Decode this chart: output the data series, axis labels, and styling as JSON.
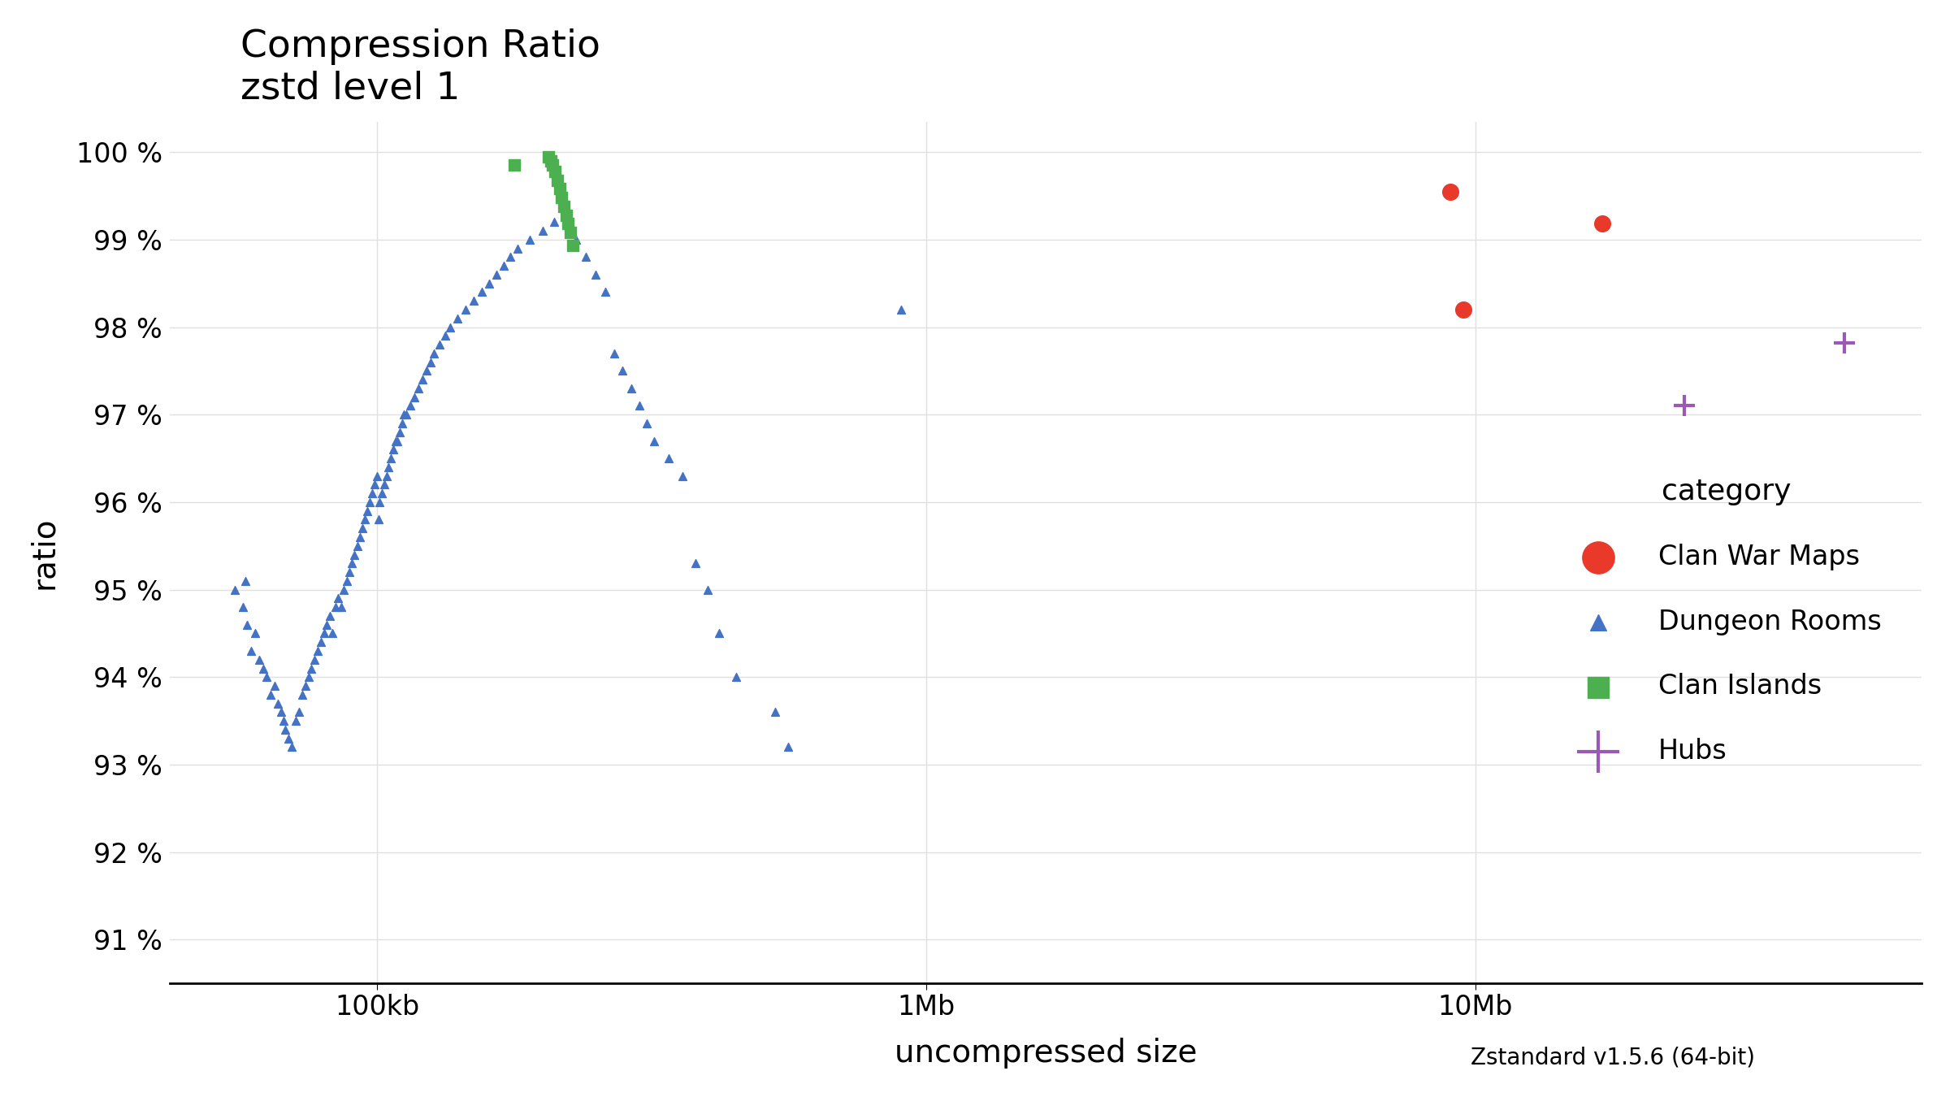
{
  "title": "Compression Ratio\nzstd level 1",
  "xlabel": "uncompressed size",
  "ylabel": "ratio",
  "footnote": "Zstandard v1.5.6 (64-bit)",
  "background_color": "#ffffff",
  "grid_color": "#e0e0e0",
  "ylim_low": 90.5,
  "ylim_high": 100.35,
  "xlim_low": 42000,
  "xlim_high": 65000000,
  "yticks": [
    91,
    92,
    93,
    94,
    95,
    96,
    97,
    98,
    99,
    100
  ],
  "xtick_labels": [
    "100kb",
    "1Mb",
    "10Mb"
  ],
  "xtick_values": [
    100000,
    1000000,
    10000000
  ],
  "clan_war_maps": {
    "color": "#e8392a",
    "marker": "o",
    "size": 200,
    "x": [
      9000000,
      17000000,
      9500000
    ],
    "y": [
      99.55,
      99.18,
      98.2
    ]
  },
  "dungeon_rooms": {
    "color": "#4472c4",
    "marker": "^",
    "size": 50,
    "x": [
      55000,
      57000,
      57500,
      58000,
      59000,
      60000,
      61000,
      62000,
      63000,
      64000,
      65000,
      66000,
      67000,
      67500,
      68000,
      69000,
      70000,
      71000,
      72000,
      73000,
      74000,
      75000,
      76000,
      77000,
      78000,
      79000,
      80000,
      81000,
      82000,
      83000,
      84000,
      85000,
      86000,
      87000,
      88000,
      89000,
      90000,
      91000,
      92000,
      93000,
      94000,
      95000,
      96000,
      97000,
      98000,
      99000,
      100000,
      100500,
      101000,
      102000,
      103000,
      104000,
      105000,
      106000,
      107000,
      108000,
      109000,
      110000,
      111000,
      112000,
      113000,
      115000,
      117000,
      119000,
      121000,
      123000,
      125000,
      127000,
      130000,
      133000,
      136000,
      140000,
      145000,
      150000,
      155000,
      160000,
      165000,
      170000,
      175000,
      180000,
      190000,
      200000,
      210000,
      220000,
      230000,
      240000,
      250000,
      260000,
      270000,
      280000,
      290000,
      300000,
      310000,
      320000,
      340000,
      360000,
      380000,
      400000,
      420000,
      450000,
      530000,
      560000,
      900000
    ],
    "y": [
      95.0,
      94.8,
      95.1,
      94.6,
      94.3,
      94.5,
      94.2,
      94.1,
      94.0,
      93.8,
      93.9,
      93.7,
      93.6,
      93.5,
      93.4,
      93.3,
      93.2,
      93.5,
      93.6,
      93.8,
      93.9,
      94.0,
      94.1,
      94.2,
      94.3,
      94.4,
      94.5,
      94.6,
      94.7,
      94.5,
      94.8,
      94.9,
      94.8,
      95.0,
      95.1,
      95.2,
      95.3,
      95.4,
      95.5,
      95.6,
      95.7,
      95.8,
      95.9,
      96.0,
      96.1,
      96.2,
      96.3,
      95.8,
      96.0,
      96.1,
      96.2,
      96.3,
      96.4,
      96.5,
      96.6,
      96.7,
      96.7,
      96.8,
      96.9,
      97.0,
      97.0,
      97.1,
      97.2,
      97.3,
      97.4,
      97.5,
      97.6,
      97.7,
      97.8,
      97.9,
      98.0,
      98.1,
      98.2,
      98.3,
      98.4,
      98.5,
      98.6,
      98.7,
      98.8,
      98.9,
      99.0,
      99.1,
      99.2,
      99.3,
      99.0,
      98.8,
      98.6,
      98.4,
      97.7,
      97.5,
      97.3,
      97.1,
      96.9,
      96.7,
      96.5,
      96.3,
      95.3,
      95.0,
      94.5,
      94.0,
      93.6,
      93.2,
      98.2
    ]
  },
  "clan_islands": {
    "color": "#4caf50",
    "marker": "s",
    "size": 90,
    "x": [
      178000,
      205000,
      207000,
      209000,
      211000,
      213000,
      215000,
      217000,
      219000,
      221000,
      223000,
      225000,
      227000
    ],
    "y": [
      99.85,
      99.95,
      99.9,
      99.85,
      99.78,
      99.68,
      99.58,
      99.48,
      99.38,
      99.28,
      99.18,
      99.08,
      98.93
    ]
  },
  "hubs": {
    "color": "#9b59b6",
    "marker": "+",
    "size": 350,
    "linewidths": 3.0,
    "x": [
      24000000,
      47000000
    ],
    "y": [
      97.1,
      97.82
    ]
  },
  "legend_title": "category",
  "title_fontsize": 34,
  "axis_label_fontsize": 28,
  "tick_fontsize": 24,
  "legend_fontsize": 24,
  "legend_title_fontsize": 26
}
